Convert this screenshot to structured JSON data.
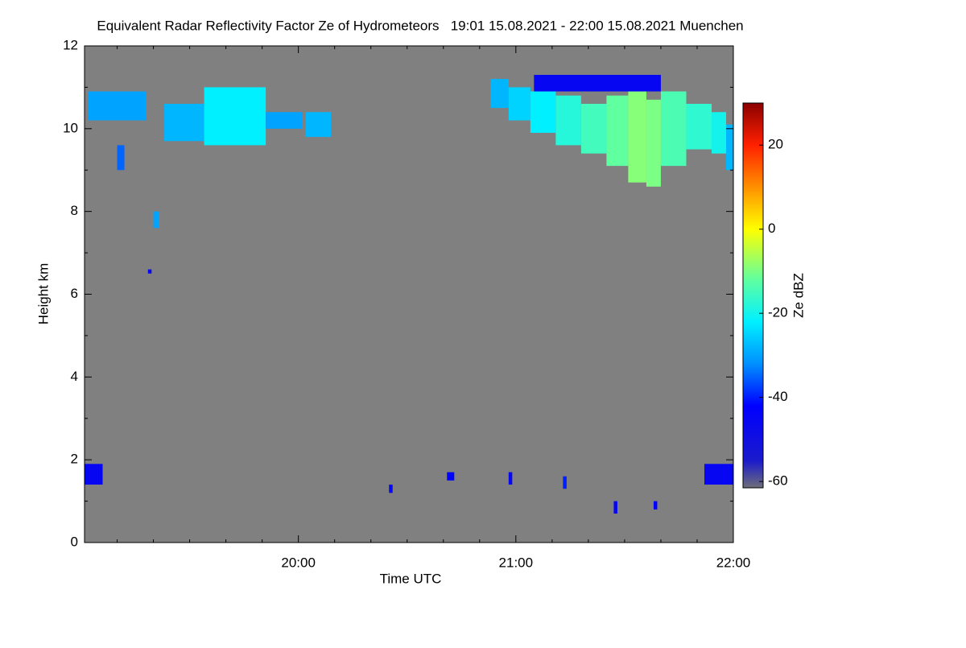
{
  "chart_data": {
    "type": "heatmap",
    "title": "Equivalent Radar Reflectivity Factor Ze of Hydrometeors   19:01 15.08.2021 - 22:00 15.08.2021 Muenchen",
    "x_label": "Time UTC",
    "y_label": "Height km",
    "colorbar_label": "Ze dBZ",
    "xlim": [
      1,
      180
    ],
    "xticks": [
      {
        "value": 60,
        "label": "20:00"
      },
      {
        "value": 120,
        "label": "21:00"
      },
      {
        "value": 180,
        "label": "22:00"
      }
    ],
    "xminorticks": [
      10,
      20,
      30,
      40,
      50,
      70,
      80,
      90,
      100,
      110,
      130,
      140,
      150,
      160,
      170
    ],
    "ylim": [
      0,
      12
    ],
    "yticks": [
      0,
      2,
      4,
      6,
      8,
      10,
      12
    ],
    "yminorticks": [
      1,
      3,
      5,
      7,
      9,
      11
    ],
    "zlim": [
      -61.5,
      30
    ],
    "zticks": [
      -60,
      -40,
      -20,
      0,
      20
    ],
    "background": "#808080",
    "colormap": [
      [
        -61.5,
        "#6e6e78"
      ],
      [
        -55,
        "#1a1acc"
      ],
      [
        -42,
        "#0000ff"
      ],
      [
        -32,
        "#0090ff"
      ],
      [
        -22,
        "#00f0ff"
      ],
      [
        -12,
        "#60ffa0"
      ],
      [
        0,
        "#ffff00"
      ],
      [
        10,
        "#ff9000"
      ],
      [
        20,
        "#ff2000"
      ],
      [
        30,
        "#8b0000"
      ]
    ],
    "cells": [
      [
        113,
        118,
        10.5,
        11.2,
        -28
      ],
      [
        118,
        124,
        10.2,
        11.0,
        -25
      ],
      [
        124,
        131,
        9.9,
        10.9,
        -22
      ],
      [
        131,
        138,
        9.6,
        10.8,
        -18
      ],
      [
        138,
        145,
        9.4,
        10.6,
        -15
      ],
      [
        145,
        151,
        9.1,
        10.8,
        -12
      ],
      [
        151,
        156,
        8.7,
        10.9,
        -9
      ],
      [
        156,
        160,
        8.6,
        10.7,
        -10
      ],
      [
        160,
        167,
        9.1,
        10.9,
        -14
      ],
      [
        167,
        174,
        9.5,
        10.6,
        -17
      ],
      [
        174,
        178,
        9.4,
        10.4,
        -20
      ],
      [
        178,
        180,
        9.0,
        10.1,
        -28
      ],
      [
        125,
        160,
        10.9,
        11.3,
        -45
      ],
      [
        2,
        18,
        10.2,
        10.9,
        -30
      ],
      [
        23,
        34,
        9.7,
        10.6,
        -28
      ],
      [
        34,
        51,
        9.6,
        11.0,
        -22
      ],
      [
        51,
        61,
        10.0,
        10.4,
        -30
      ],
      [
        62,
        69,
        9.8,
        10.4,
        -28
      ],
      [
        10,
        12,
        9.0,
        9.6,
        -35
      ],
      [
        20,
        21.5,
        7.6,
        8.0,
        -30
      ],
      [
        18.5,
        19.5,
        6.5,
        6.6,
        -45
      ],
      [
        1,
        6,
        1.4,
        1.9,
        -45
      ],
      [
        172,
        180,
        1.4,
        1.9,
        -45
      ],
      [
        101,
        103,
        1.5,
        1.7,
        -42
      ],
      [
        118,
        119,
        1.4,
        1.7,
        -45
      ],
      [
        133,
        134,
        1.3,
        1.6,
        -40
      ],
      [
        147,
        148,
        0.7,
        1.0,
        -45
      ],
      [
        85,
        86,
        1.2,
        1.4,
        -45
      ],
      [
        158,
        159,
        0.8,
        1.0,
        -42
      ]
    ]
  }
}
